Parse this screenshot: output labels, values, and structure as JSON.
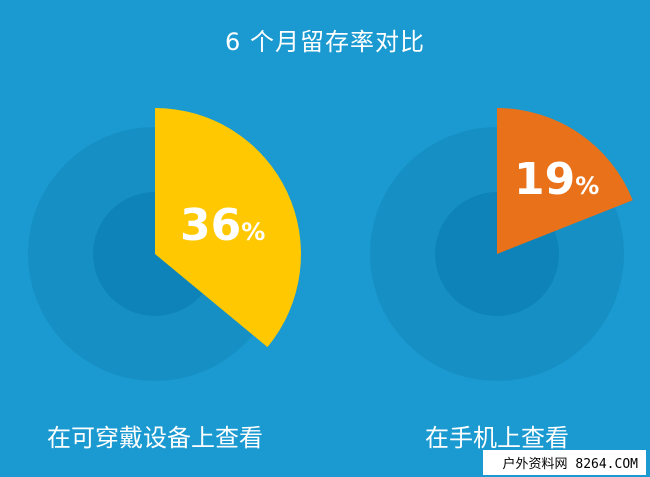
{
  "chart_data": {
    "type": "pie",
    "title": "6 个月留存率对比",
    "charts": [
      {
        "label": "在可穿戴设备上查看",
        "value": 36,
        "display": "36",
        "unit": "%",
        "color": "#ffc800"
      },
      {
        "label": "在手机上查看",
        "value": 19,
        "display": "19",
        "unit": "%",
        "color": "#e8711a"
      }
    ]
  },
  "colors": {
    "background": "#1a9ad0",
    "outer_ring": "#1690c4",
    "inner_circle": "#0d83b9"
  },
  "watermark": "户外资料网 8264.COM"
}
